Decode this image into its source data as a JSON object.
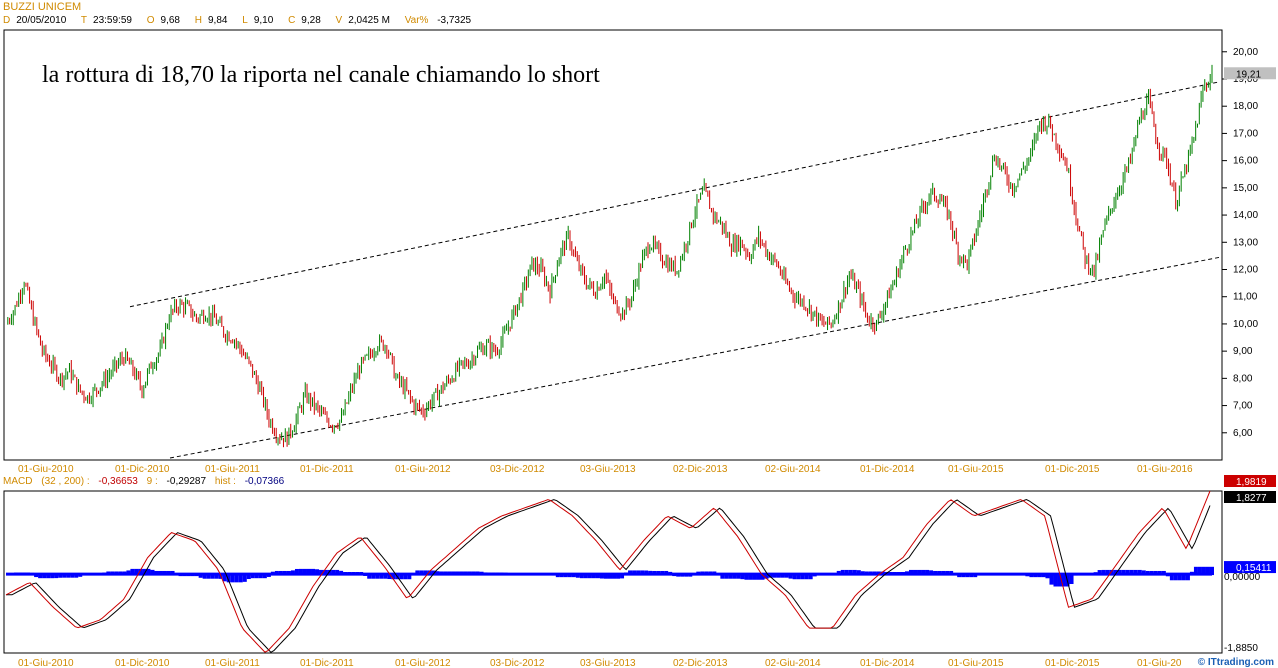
{
  "header": {
    "title": "BUZZI UNICEM",
    "date_label": "D",
    "date": "20/05/2010",
    "time_label": "T",
    "time": "23:59:59",
    "open_label": "O",
    "open": "9,68",
    "high_label": "H",
    "high": "9,84",
    "low_label": "L",
    "low": "9,10",
    "close_label": "C",
    "close": "9,28",
    "volume_label": "V",
    "volume": "2,0425 M",
    "varpct_label": "Var%",
    "varpct": "-3,7325"
  },
  "annotation": "la rottura di 18,70 la riporta nel canale chiamando lo short",
  "macd_header": {
    "name": "MACD",
    "params": "(32 , 200) :",
    "macd": "-0,36653",
    "signal_label": "9 :",
    "signal": "-0,29287",
    "hist_label": "hist :",
    "hist": "-0,07366"
  },
  "macd_tags": {
    "macd_value": "1,9819",
    "signal_value": "1,8277",
    "hist_value": "0,15411",
    "zero_label": "0,00000",
    "bottom_label": "-1,8850"
  },
  "price_tag": "19,21",
  "footer": "© ITtrading.com",
  "colors": {
    "up": "#008000",
    "down": "#cc0000",
    "macd": "#cc0000",
    "signal": "#000000",
    "hist": "#0000ff",
    "accent": "#d08a00"
  },
  "chart_data": [
    {
      "type": "line",
      "title": "BUZZI UNICEM",
      "yticks": [
        "6,00",
        "7,00",
        "8,00",
        "9,00",
        "10,00",
        "11,00",
        "12,00",
        "13,00",
        "14,00",
        "15,00",
        "16,00",
        "17,00",
        "18,00",
        "19,00",
        "20,00"
      ],
      "ylim": [
        5,
        20.8
      ],
      "xticks": [
        "01-Giu-2010",
        "01-Dic-2010",
        "01-Giu-2011",
        "01-Dic-2011",
        "01-Giu-2012",
        "03-Dic-2012",
        "03-Giu-2013",
        "02-Dic-2013",
        "02-Giu-2014",
        "01-Dic-2014",
        "01-Giu-2015",
        "01-Dic-2015",
        "01-Giu-2016"
      ],
      "series": [
        {
          "values": [
            10.0,
            10.6,
            11.6,
            10.2,
            9.0,
            8.5,
            8.0,
            8.3,
            7.6,
            7.3,
            7.6,
            8.0,
            8.4,
            8.8,
            8.3,
            7.6,
            8.5,
            9.0,
            10.3,
            10.7,
            10.6,
            10.2,
            10.4,
            10.2,
            9.7,
            9.5,
            9.0,
            8.4,
            7.6,
            6.5,
            5.9,
            5.8,
            6.5,
            7.4,
            7.0,
            6.6,
            6.3,
            6.5,
            7.5,
            8.4,
            8.8,
            9.3,
            9.2,
            8.0,
            7.6,
            7.0,
            6.8,
            7.2,
            7.6,
            8.0,
            8.4,
            8.6,
            9.0,
            9.2,
            9.0,
            9.6,
            10.4,
            11.2,
            12.2,
            12.0,
            11.2,
            12.5,
            13.2,
            12.2,
            11.5,
            11.2,
            11.8,
            10.8,
            10.4,
            11.0,
            12.2,
            13.0,
            12.6,
            12.2,
            12.0,
            13.0,
            14.2,
            14.9,
            14.0,
            13.6,
            12.9,
            13.0,
            12.5,
            13.2,
            12.6,
            12.2,
            11.5,
            11.0,
            10.8,
            10.4,
            10.0,
            10.0,
            10.8,
            11.8,
            11.2,
            10.2,
            10.0,
            10.8,
            11.6,
            12.6,
            13.4,
            14.2,
            14.8,
            14.6,
            14.0,
            12.6,
            12.2,
            13.4,
            14.8,
            16.2,
            15.6,
            15.0,
            15.6,
            16.2,
            17.4,
            17.4,
            16.6,
            15.8,
            14.0,
            12.4,
            11.9,
            13.4,
            14.4,
            15.2,
            16.0,
            17.5,
            18.2,
            16.6,
            16.0,
            14.5,
            15.6,
            16.8,
            18.6,
            19.2
          ]
        }
      ],
      "channel": {
        "upper_line": "dashed",
        "lower_line": "dashed"
      }
    },
    {
      "type": "line",
      "title": "MACD (32 , 200)",
      "ylim": [
        -1.9,
        2.0
      ],
      "xticks": [
        "01-Giu-2010",
        "01-Dic-2010",
        "01-Giu-2011",
        "01-Dic-2011",
        "01-Giu-2012",
        "03-Dic-2012",
        "03-Giu-2013",
        "02-Dic-2013",
        "02-Giu-2014",
        "01-Dic-2014",
        "01-Giu-2015",
        "01-Dic-2015",
        "01-Giu-20"
      ],
      "series": [
        {
          "name": "MACD",
          "values": [
            -0.5,
            -0.2,
            -0.8,
            -1.3,
            -1.1,
            -0.6,
            0.4,
            1.0,
            0.8,
            0.1,
            -1.3,
            -1.9,
            -1.3,
            -0.3,
            0.5,
            0.9,
            0.2,
            -0.6,
            0.1,
            0.6,
            1.1,
            1.4,
            1.6,
            1.8,
            1.4,
            0.8,
            0.1,
            0.8,
            1.4,
            1.1,
            1.6,
            0.9,
            0.0,
            -0.5,
            -1.3,
            -1.3,
            -0.5,
            0.0,
            0.4,
            1.2,
            1.8,
            1.4,
            1.6,
            1.8,
            1.4,
            -0.8,
            -0.6,
            0.2,
            1.0,
            1.6,
            0.6,
            2.0
          ]
        },
        {
          "name": "Signal",
          "values": [
            -0.5,
            -0.2,
            -0.8,
            -1.3,
            -1.1,
            -0.6,
            0.4,
            1.0,
            0.8,
            0.1,
            -1.3,
            -1.9,
            -1.3,
            -0.3,
            0.5,
            0.9,
            0.2,
            -0.6,
            0.1,
            0.6,
            1.1,
            1.4,
            1.6,
            1.8,
            1.4,
            0.8,
            0.1,
            0.8,
            1.4,
            1.1,
            1.6,
            0.9,
            0.0,
            -0.5,
            -1.3,
            -1.3,
            -0.5,
            0.0,
            0.4,
            1.2,
            1.8,
            1.4,
            1.6,
            1.8,
            1.4,
            -0.8,
            -0.6,
            0.2,
            1.0,
            1.6,
            0.6,
            1.8
          ]
        }
      ]
    }
  ]
}
